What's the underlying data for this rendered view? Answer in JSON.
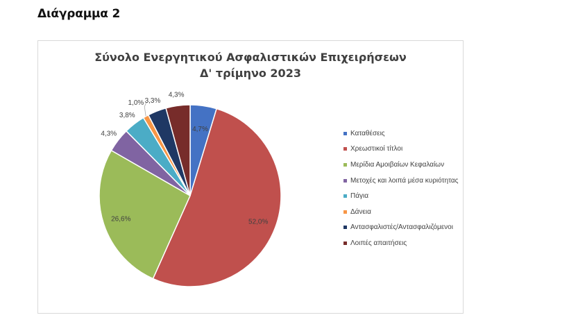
{
  "page": {
    "heading": "Διάγραμμα 2"
  },
  "chart_data": {
    "type": "pie",
    "title": "Σύνολο Ενεργητικού Ασφαλιστικών Επιχειρήσεων",
    "subtitle": "Δ' τρίμηνο 2023",
    "legend_position": "right",
    "categories": [
      "Καταθέσεις",
      "Χρεωστικοί τίτλοι",
      "Μερίδια Αμοιβαίων Κεφαλαίων",
      "Μετοχές και λοιπά μέσα κυριότητας",
      "Πάγια",
      "Δάνεια",
      "Αντασφαλιστές/Αντασφαλιζόμενοι",
      "Λοιπές απαιτήσεις"
    ],
    "values": [
      4.7,
      52.0,
      26.6,
      4.3,
      3.8,
      1.0,
      3.3,
      4.3
    ],
    "data_labels": [
      "4,7%",
      "52,0%",
      "26,6%",
      "4,3%",
      "3,8%",
      "1,0%",
      "3,3%",
      "4,3%"
    ],
    "colors": [
      "#4472C4",
      "#C0504D",
      "#9BBB59",
      "#8064A2",
      "#4BACC6",
      "#F79646",
      "#1F3864",
      "#772C2A"
    ]
  }
}
